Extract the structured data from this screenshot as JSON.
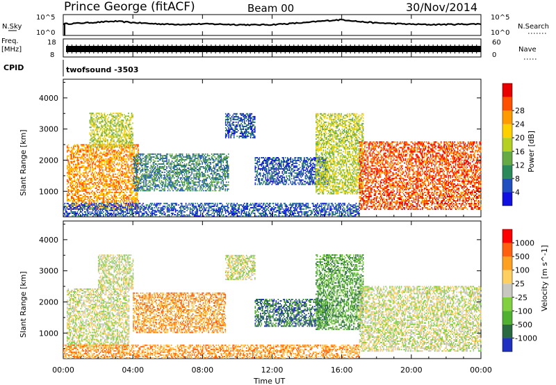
{
  "header": {
    "title": "Prince George (fitACF)",
    "beam": "Beam 00",
    "date": "30/Nov/2014"
  },
  "left_labels": {
    "nsky": "N.Sky",
    "freq": "Freq.",
    "freq_unit": "[MHz]",
    "cpid": "CPID"
  },
  "right_labels": {
    "nsearch": "N.Search",
    "nave": "Nave"
  },
  "cpid_value": "twofsound  -3503",
  "chart_data": [
    {
      "type": "line",
      "name": "noise",
      "ylabel_left": "N.Sky",
      "ylabel_right": "N.Search",
      "y_ticks_left": [
        "10^5",
        "10^0"
      ],
      "y_ticks_right": [
        "10^5",
        "10^0"
      ],
      "yscale": "log",
      "ylim": [
        1,
        100000
      ],
      "x_hours": [
        0,
        1,
        2,
        3,
        4,
        5,
        6,
        7,
        8,
        9,
        10,
        11,
        12,
        13,
        14,
        15,
        16,
        17,
        18,
        19,
        20,
        21,
        22,
        23,
        24
      ],
      "series": [
        {
          "values": [
            600,
            900,
            1500,
            2500,
            1200,
            700,
            500,
            450,
            600,
            500,
            400,
            350,
            400,
            700,
            1200,
            3000,
            6000,
            2000,
            1000,
            700,
            500,
            400,
            450,
            500,
            600
          ]
        }
      ]
    },
    {
      "type": "line",
      "name": "frequency",
      "ylabel_left": "Freq. [MHz]",
      "y_ticks_left": [
        "18",
        "8"
      ],
      "y_ticks_right": [
        "60",
        "0"
      ],
      "ylim": [
        8,
        18
      ],
      "series": [
        {
          "values_range": [
            10.2,
            11.0
          ]
        }
      ]
    },
    {
      "type": "heatmap",
      "quantity": "Power",
      "unit": "[dB]",
      "ylabel": "Slant Range [km]",
      "xlim_hours": [
        0,
        24
      ],
      "ylim": [
        180,
        4600
      ],
      "y_ticks": [
        "1000",
        "2000",
        "3000",
        "4000"
      ],
      "colorbar_ticks": [
        "4",
        "8",
        "12",
        "16",
        "20",
        "24",
        "28"
      ],
      "colorbar_colors": [
        "#1010e0",
        "#2050c0",
        "#2a8a5a",
        "#66aa44",
        "#b5d020",
        "#ffd000",
        "#ff9a00",
        "#ff5000",
        "#e80000"
      ],
      "regions": [
        {
          "t": [
            0.2,
            4.3
          ],
          "r": [
            400,
            2500
          ],
          "level": 6
        },
        {
          "t": [
            1.5,
            4.0
          ],
          "r": [
            2400,
            3500
          ],
          "level": 4
        },
        {
          "t": [
            4.0,
            9.5
          ],
          "r": [
            1000,
            2200
          ],
          "level": 2
        },
        {
          "t": [
            9.3,
            11.0
          ],
          "r": [
            2700,
            3500
          ],
          "level": 1
        },
        {
          "t": [
            11.0,
            15.2
          ],
          "r": [
            1200,
            2100
          ],
          "level": 1
        },
        {
          "t": [
            14.5,
            17.2
          ],
          "r": [
            900,
            3500
          ],
          "level": 4
        },
        {
          "t": [
            17.0,
            24.0
          ],
          "r": [
            400,
            2600
          ],
          "level": 7
        },
        {
          "t": [
            0.0,
            17.0
          ],
          "r": [
            180,
            600
          ],
          "level": 1
        }
      ]
    },
    {
      "type": "heatmap",
      "quantity": "Velocity",
      "unit": "[m s^-1]",
      "ylabel": "Slant Range [km]",
      "xlim_hours": [
        0,
        24
      ],
      "ylim": [
        180,
        4600
      ],
      "y_ticks": [
        "1000",
        "2000",
        "3000",
        "4000"
      ],
      "colorbar_ticks": [
        "1000",
        "500",
        "100",
        "25",
        "-25",
        "-100",
        "-500",
        "-1000"
      ],
      "colorbar_colors": [
        "#2030c0",
        "#2a6a40",
        "#50b030",
        "#80d040",
        "#c8c8c0",
        "#ffd060",
        "#ffa020",
        "#ff6010",
        "#ff0000"
      ],
      "regions": [
        {
          "t": [
            0.2,
            3.8
          ],
          "r": [
            500,
            2400
          ],
          "level": 4
        },
        {
          "t": [
            2.0,
            4.0
          ],
          "r": [
            2400,
            3500
          ],
          "level": 4
        },
        {
          "t": [
            4.0,
            9.3
          ],
          "r": [
            1000,
            2300
          ],
          "level": 6
        },
        {
          "t": [
            9.3,
            11.0
          ],
          "r": [
            2700,
            3500
          ],
          "level": 4
        },
        {
          "t": [
            11.0,
            15.2
          ],
          "r": [
            1200,
            2100
          ],
          "level": 1
        },
        {
          "t": [
            14.5,
            17.2
          ],
          "r": [
            1100,
            3500
          ],
          "level": 2
        },
        {
          "t": [
            17.0,
            24.0
          ],
          "r": [
            400,
            2500
          ],
          "level": 4
        },
        {
          "t": [
            0.0,
            17.0
          ],
          "r": [
            180,
            600
          ],
          "level": 6
        }
      ]
    }
  ],
  "x_axis": {
    "label": "Time UT",
    "ticks": [
      "00:00",
      "04:00",
      "08:00",
      "12:00",
      "16:00",
      "20:00",
      "00:00"
    ],
    "tick_hours": [
      0,
      4,
      8,
      12,
      16,
      20,
      24
    ]
  }
}
